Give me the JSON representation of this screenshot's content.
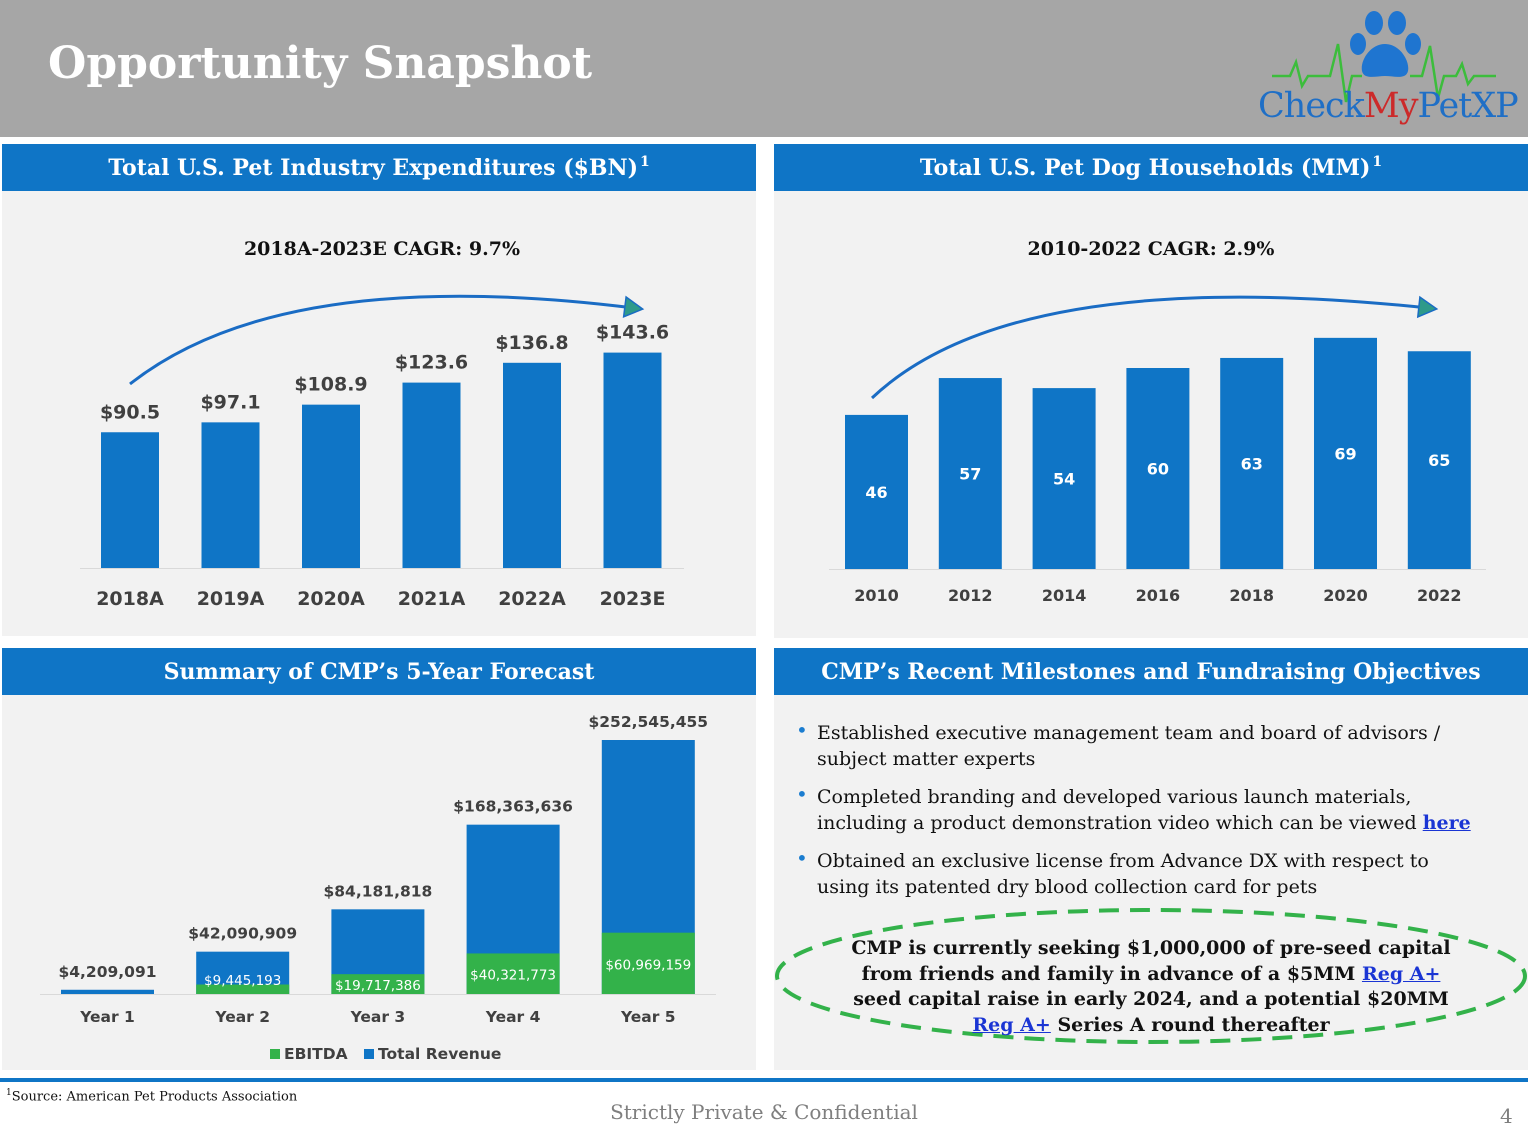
{
  "header": {
    "title": "Opportunity Snapshot"
  },
  "logo": {
    "text_part1": "Check",
    "text_part2": "My",
    "text_part3": "PetXP"
  },
  "panels": {
    "expenditures": {
      "title": "Total U.S. Pet Industry Expenditures ($BN)",
      "footnote_mark": "1",
      "cagr": "2018A-2023E CAGR: 9.7%"
    },
    "households": {
      "title": "Total U.S. Pet Dog Households (MM)",
      "footnote_mark": "1",
      "cagr": "2010-2022 CAGR: 2.9%"
    },
    "forecast": {
      "title": "Summary of CMP’s 5-Year Forecast"
    },
    "milestones": {
      "title": "CMP’s Recent Milestones and Fundraising Objectives",
      "bullet_glyph": "•",
      "items": [
        {
          "text": "Established executive management team and board of advisors / subject matter experts",
          "link": ""
        },
        {
          "text": "Completed branding and developed various launch materials, including a product demonstration video which can be viewed ",
          "link": "here"
        },
        {
          "text": "Obtained an exclusive license from Advance DX with respect to using its patented dry blood collection card for pets",
          "link": ""
        }
      ],
      "seeking": {
        "part1": "CMP is currently seeking $1,000,000 of pre-seed capital from friends and family in advance of a $5MM ",
        "link1": "Reg A+",
        "part2": " seed capital raise in early 2024, and a potential $20MM ",
        "link2": "Reg A+",
        "part3": " Series A round thereafter"
      }
    }
  },
  "chart_data": [
    {
      "type": "bar",
      "title": "Total U.S. Pet Industry Expenditures ($BN)",
      "categories": [
        "2018A",
        "2019A",
        "2020A",
        "2021A",
        "2022A",
        "2023E"
      ],
      "values": [
        90.5,
        97.1,
        108.9,
        123.6,
        136.8,
        143.6
      ],
      "labels": [
        "$90.5",
        "$97.1",
        "$108.9",
        "$123.6",
        "$136.8",
        "$143.6"
      ],
      "annotation": "2018A-2023E CAGR: 9.7%",
      "color": "#0f75c6",
      "arrow_color": "#1a6cc4",
      "arrow_head_color": "#2e9a8a"
    },
    {
      "type": "bar",
      "title": "Total U.S. Pet Dog Households (MM)",
      "categories": [
        "2010",
        "2012",
        "2014",
        "2016",
        "2018",
        "2020",
        "2022"
      ],
      "values": [
        46,
        57,
        54,
        60,
        63,
        69,
        65
      ],
      "annotation": "2010-2022 CAGR: 2.9%",
      "color": "#0f75c6",
      "arrow_color": "#1a6cc4",
      "arrow_head_color": "#2e9a8a"
    },
    {
      "type": "bar",
      "title": "Summary of CMP’s 5-Year Forecast",
      "categories": [
        "Year 1",
        "Year 2",
        "Year 3",
        "Year 4",
        "Year 5"
      ],
      "series": [
        {
          "name": "EBITDA",
          "color": "#33b24a",
          "values": [
            0,
            9445193,
            19717386,
            40321773,
            60969159
          ],
          "labels": [
            "",
            "$9,445,193",
            "$19,717,386",
            "$40,321,773",
            "$60,969,159"
          ]
        },
        {
          "name": "Total Revenue",
          "color": "#0f75c6",
          "values": [
            4209091,
            42090909,
            84181818,
            168363636,
            252545455
          ],
          "labels": [
            "$4,209,091",
            "$42,090,909",
            "$84,181,818",
            "$168,363,636",
            "$252,545,455"
          ]
        }
      ],
      "legend": "bottom"
    }
  ],
  "footer": {
    "footnote_mark": "1",
    "footnote": "Source: American Pet Products Association",
    "confidential": "Strictly Private & Confidential",
    "page": "4"
  }
}
